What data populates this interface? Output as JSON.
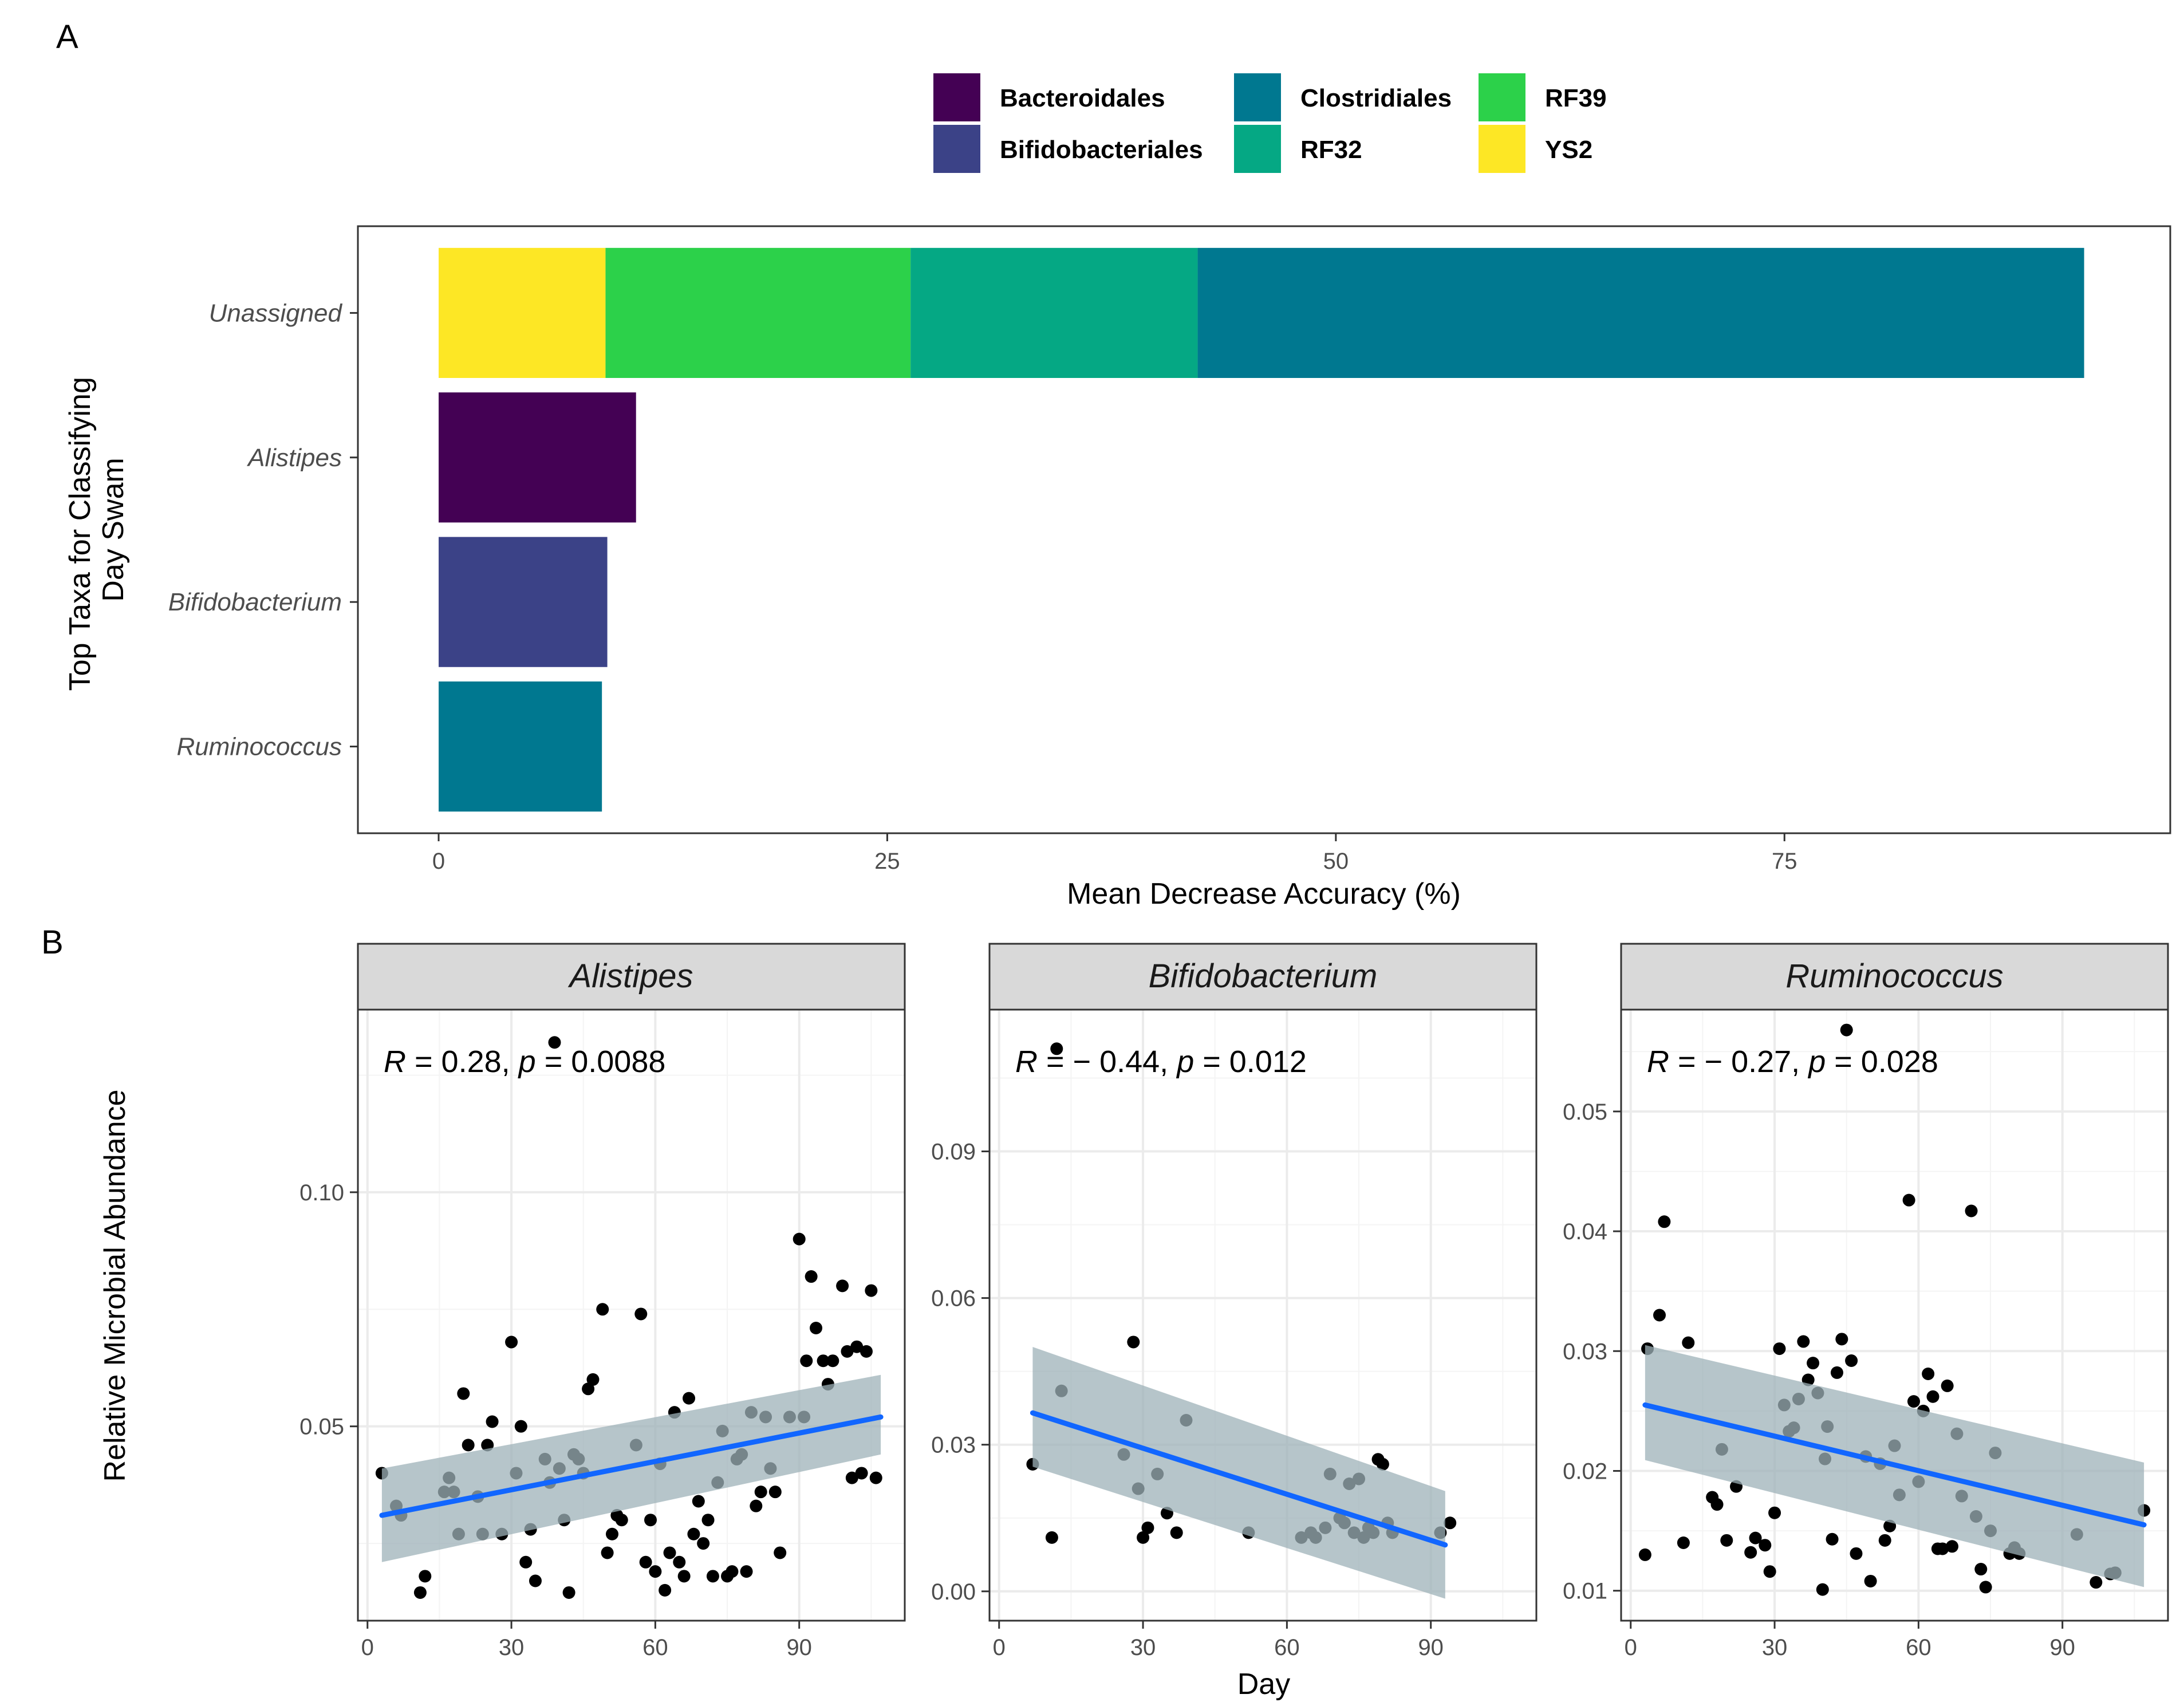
{
  "figure": {
    "panel_a_label": "A",
    "panel_b_label": "B"
  },
  "chart_data": [
    {
      "type": "bar",
      "orientation": "horizontal",
      "stacked": true,
      "categories": [
        "Unassigned",
        "Alistipes",
        "Bifidobacterium",
        "Ruminococcus"
      ],
      "series": [
        {
          "name": "YS2",
          "color": "#FDE725",
          "values": [
            9.3,
            0,
            0,
            0
          ]
        },
        {
          "name": "RF39",
          "color": "#2CD14A",
          "values": [
            17.0,
            0,
            0,
            0
          ]
        },
        {
          "name": "RF32",
          "color": "#05A884",
          "values": [
            16.0,
            0,
            0,
            0
          ]
        },
        {
          "name": "Clostridiales",
          "color": "#007890",
          "values": [
            49.4,
            0,
            0,
            9.1
          ]
        },
        {
          "name": "Bacteroidales",
          "color": "#440154",
          "values": [
            0,
            11.0,
            0,
            0
          ]
        },
        {
          "name": "Bifidobacteriales",
          "color": "#3B4287",
          "values": [
            0,
            0,
            9.4,
            0
          ]
        }
      ],
      "legend": {
        "placement": "top",
        "entries": [
          {
            "label": "Bacteroidales",
            "color": "#440154"
          },
          {
            "label": "Bifidobacteriales",
            "color": "#3B4287"
          },
          {
            "label": "Clostridiales",
            "color": "#007890"
          },
          {
            "label": "RF32",
            "color": "#05A884"
          },
          {
            "label": "RF39",
            "color": "#2CD14A"
          },
          {
            "label": "YS2",
            "color": "#FDE725"
          }
        ]
      },
      "xlabel": "Mean Decrease Accuracy (%)",
      "ylabel": "Top Taxa for Classifying\nDay Swam",
      "xlim": [
        -4.5,
        96.5
      ],
      "xticks": [
        0,
        25,
        50,
        75
      ],
      "grid": false
    },
    {
      "type": "scatter",
      "facets": [
        {
          "title": "Alistipes",
          "annotation": {
            "r_label": "R",
            "r_text": " = 0.28, ",
            "p_label": "p",
            "p_text": " = 0.0088"
          },
          "xlim": [
            -2,
            112
          ],
          "ylim": [
            0.0085,
            0.139
          ],
          "xticks": [
            0,
            30,
            60,
            90
          ],
          "yticks": [
            0.05,
            0.1
          ],
          "ytick_labels": [
            "0.05",
            "0.10"
          ],
          "fit": {
            "x": [
              3,
              107
            ],
            "y": [
              0.031,
              0.052
            ],
            "band_upper": [
              0.041,
              0.061
            ],
            "band_lower": [
              0.021,
              0.044
            ]
          },
          "points": [
            [
              3,
              0.04
            ],
            [
              6,
              0.033
            ],
            [
              7,
              0.031
            ],
            [
              11,
              0.0145
            ],
            [
              12,
              0.018
            ],
            [
              16,
              0.036
            ],
            [
              17,
              0.039
            ],
            [
              18,
              0.036
            ],
            [
              19,
              0.027
            ],
            [
              20,
              0.057
            ],
            [
              21,
              0.046
            ],
            [
              23,
              0.035
            ],
            [
              24,
              0.027
            ],
            [
              25,
              0.046
            ],
            [
              26,
              0.051
            ],
            [
              28,
              0.027
            ],
            [
              30,
              0.068
            ],
            [
              31,
              0.04
            ],
            [
              32,
              0.05
            ],
            [
              33,
              0.021
            ],
            [
              34,
              0.028
            ],
            [
              35,
              0.017
            ],
            [
              37,
              0.043
            ],
            [
              38,
              0.038
            ],
            [
              39,
              0.132
            ],
            [
              40,
              0.041
            ],
            [
              41,
              0.03
            ],
            [
              42,
              0.0145
            ],
            [
              43,
              0.044
            ],
            [
              44,
              0.043
            ],
            [
              45,
              0.04
            ],
            [
              46,
              0.058
            ],
            [
              47,
              0.06
            ],
            [
              49,
              0.075
            ],
            [
              50,
              0.023
            ],
            [
              51,
              0.027
            ],
            [
              52,
              0.031
            ],
            [
              53,
              0.03
            ],
            [
              56,
              0.046
            ],
            [
              57,
              0.074
            ],
            [
              58,
              0.021
            ],
            [
              59,
              0.03
            ],
            [
              60,
              0.019
            ],
            [
              61,
              0.042
            ],
            [
              62,
              0.015
            ],
            [
              63,
              0.023
            ],
            [
              64,
              0.053
            ],
            [
              65,
              0.021
            ],
            [
              66,
              0.018
            ],
            [
              67,
              0.056
            ],
            [
              68,
              0.027
            ],
            [
              69,
              0.034
            ],
            [
              70,
              0.025
            ],
            [
              71,
              0.03
            ],
            [
              72,
              0.018
            ],
            [
              73,
              0.038
            ],
            [
              74,
              0.049
            ],
            [
              75,
              0.018
            ],
            [
              76,
              0.019
            ],
            [
              77,
              0.043
            ],
            [
              78,
              0.044
            ],
            [
              79,
              0.019
            ],
            [
              80,
              0.053
            ],
            [
              81,
              0.033
            ],
            [
              82,
              0.036
            ],
            [
              83,
              0.052
            ],
            [
              84,
              0.041
            ],
            [
              85,
              0.036
            ],
            [
              86,
              0.023
            ],
            [
              88,
              0.052
            ],
            [
              90,
              0.09
            ],
            [
              91,
              0.052
            ],
            [
              91.5,
              0.064
            ],
            [
              92.5,
              0.082
            ],
            [
              93.5,
              0.071
            ],
            [
              95,
              0.064
            ],
            [
              96,
              0.059
            ],
            [
              97,
              0.064
            ],
            [
              99,
              0.08
            ],
            [
              100,
              0.066
            ],
            [
              101,
              0.039
            ],
            [
              102,
              0.067
            ],
            [
              103,
              0.04
            ],
            [
              104,
              0.066
            ],
            [
              105,
              0.079
            ],
            [
              106,
              0.039
            ]
          ]
        },
        {
          "title": "Bifidobacterium",
          "annotation": {
            "r_label": "R",
            "r_text": " = − 0.44, ",
            "p_label": "p",
            "p_text": " = 0.012"
          },
          "xlim": [
            -2,
            112
          ],
          "ylim": [
            -0.006,
            0.119
          ],
          "xticks": [
            0,
            30,
            60,
            90
          ],
          "yticks": [
            0.0,
            0.03,
            0.06,
            0.09
          ],
          "ytick_labels": [
            "0.00",
            "0.03",
            "0.06",
            "0.09"
          ],
          "fit": {
            "x": [
              7,
              93
            ],
            "y": [
              0.0365,
              0.0095
            ],
            "band_upper": [
              0.05,
              0.0205
            ],
            "band_lower": [
              0.0255,
              -0.0015
            ]
          },
          "points": [
            [
              7,
              0.026
            ],
            [
              11,
              0.011
            ],
            [
              12,
              0.111
            ],
            [
              13,
              0.041
            ],
            [
              26,
              0.028
            ],
            [
              28,
              0.051
            ],
            [
              29,
              0.021
            ],
            [
              30,
              0.011
            ],
            [
              31,
              0.013
            ],
            [
              33,
              0.024
            ],
            [
              35,
              0.016
            ],
            [
              37,
              0.012
            ],
            [
              39,
              0.035
            ],
            [
              52,
              0.012
            ],
            [
              63,
              0.011
            ],
            [
              65,
              0.012
            ],
            [
              66,
              0.011
            ],
            [
              68,
              0.013
            ],
            [
              69,
              0.024
            ],
            [
              71,
              0.015
            ],
            [
              72,
              0.014
            ],
            [
              73,
              0.022
            ],
            [
              74,
              0.012
            ],
            [
              75,
              0.023
            ],
            [
              76,
              0.011
            ],
            [
              77,
              0.013
            ],
            [
              78,
              0.012
            ],
            [
              79,
              0.027
            ],
            [
              80,
              0.026
            ],
            [
              81,
              0.014
            ],
            [
              82,
              0.012
            ],
            [
              92,
              0.012
            ],
            [
              94,
              0.014
            ]
          ]
        },
        {
          "title": "Ruminococcus",
          "annotation": {
            "r_label": "R",
            "r_text": " = − 0.27, ",
            "p_label": "p",
            "p_text": " = 0.028"
          },
          "xlim": [
            -2,
            112
          ],
          "ylim": [
            0.0075,
            0.0585
          ],
          "xticks": [
            0,
            30,
            60,
            90
          ],
          "yticks": [
            0.01,
            0.02,
            0.03,
            0.04,
            0.05
          ],
          "ytick_labels": [
            "0.01",
            "0.02",
            "0.03",
            "0.04",
            "0.05"
          ],
          "fit": {
            "x": [
              3,
              107
            ],
            "y": [
              0.0255,
              0.0155
            ],
            "band_upper": [
              0.0305,
              0.0207
            ],
            "band_lower": [
              0.0209,
              0.0103
            ]
          },
          "points": [
            [
              3,
              0.013
            ],
            [
              3.5,
              0.0302
            ],
            [
              6,
              0.033
            ],
            [
              7,
              0.0408
            ],
            [
              11,
              0.014
            ],
            [
              12,
              0.0307
            ],
            [
              17,
              0.0178
            ],
            [
              18,
              0.0172
            ],
            [
              19,
              0.0218
            ],
            [
              20,
              0.0142
            ],
            [
              22,
              0.0187
            ],
            [
              25,
              0.0132
            ],
            [
              26,
              0.0144
            ],
            [
              28,
              0.0138
            ],
            [
              29,
              0.0116
            ],
            [
              30,
              0.0165
            ],
            [
              31,
              0.0302
            ],
            [
              32,
              0.0255
            ],
            [
              33,
              0.0233
            ],
            [
              34,
              0.0236
            ],
            [
              35,
              0.026
            ],
            [
              36,
              0.0308
            ],
            [
              37,
              0.0276
            ],
            [
              38,
              0.029
            ],
            [
              39,
              0.0265
            ],
            [
              40,
              0.0101
            ],
            [
              40.5,
              0.021
            ],
            [
              41,
              0.0237
            ],
            [
              42,
              0.0143
            ],
            [
              43,
              0.0282
            ],
            [
              44,
              0.031
            ],
            [
              45,
              0.0568
            ],
            [
              46,
              0.0292
            ],
            [
              47,
              0.0131
            ],
            [
              49,
              0.0212
            ],
            [
              50,
              0.0108
            ],
            [
              52,
              0.0206
            ],
            [
              53,
              0.0142
            ],
            [
              54,
              0.0154
            ],
            [
              55,
              0.0221
            ],
            [
              56,
              0.018
            ],
            [
              58,
              0.0426
            ],
            [
              59,
              0.0258
            ],
            [
              60,
              0.0191
            ],
            [
              61,
              0.025
            ],
            [
              62,
              0.0281
            ],
            [
              63,
              0.0262
            ],
            [
              64,
              0.0135
            ],
            [
              65,
              0.0135
            ],
            [
              66,
              0.0271
            ],
            [
              67,
              0.0137
            ],
            [
              68,
              0.0231
            ],
            [
              69,
              0.0179
            ],
            [
              71,
              0.0417
            ],
            [
              72,
              0.0162
            ],
            [
              73,
              0.0118
            ],
            [
              74,
              0.0103
            ],
            [
              75,
              0.015
            ],
            [
              76,
              0.0215
            ],
            [
              79,
              0.0131
            ],
            [
              80,
              0.0136
            ],
            [
              81,
              0.0131
            ],
            [
              93,
              0.0147
            ],
            [
              97,
              0.0107
            ],
            [
              100,
              0.0114
            ],
            [
              101,
              0.0115
            ],
            [
              107,
              0.0167
            ]
          ]
        }
      ],
      "xlabel": "Day",
      "ylabel": "Relative Microbial Abundance",
      "point_color": "#000000",
      "fit_color": "#1166FF",
      "band_color": "#9DB2B8",
      "grid": true
    }
  ]
}
